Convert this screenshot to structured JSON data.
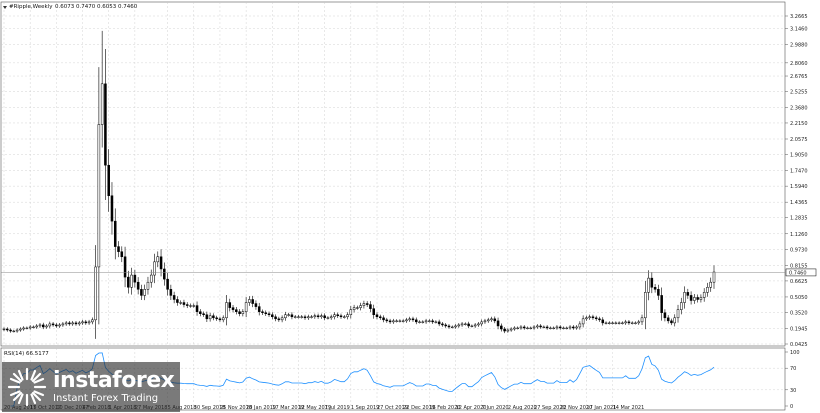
{
  "chart_data": [
    {
      "type": "candlestick",
      "header": {
        "symbol": "#Ripple,Weekly",
        "ohlc_text": "0.6073 0.7470 0.6053 0.7460",
        "last_price_label": "0.7460"
      },
      "y_ticks": [
        "3.2665",
        "3.1460",
        "2.9880",
        "2.8060",
        "2.6765",
        "2.5255",
        "2.3680",
        "2.2150",
        "2.0575",
        "1.9050",
        "1.7470",
        "1.5940",
        "1.4365",
        "1.2835",
        "1.1260",
        "0.9730",
        "0.8155",
        "0.6625",
        "0.5050",
        "0.3520",
        "0.1945",
        "0.0425"
      ],
      "ylim": [
        0.0425,
        3.2665
      ],
      "last_price": 0.746,
      "x_ticks": [
        "20 Aug 2017",
        "15 Oct 2017",
        "10 Dec 2017",
        "4 Feb 2018",
        "1 Apr 2018",
        "27 May 2018",
        "5 Aug 2018",
        "30 Sep 2018",
        "25 Nov 2018",
        "20 Jan 2019",
        "17 Mar 2019",
        "12 May 2019",
        "7 Jul 2019",
        "1 Sep 2019",
        "27 Oct 2019",
        "22 Dec 2019",
        "16 Feb 2020",
        "12 Apr 2020",
        "7 Jun 2020",
        "2 Aug 2020",
        "27 Sep 2020",
        "22 Nov 2020",
        "17 Jan 2021",
        "14 Mar 2021"
      ],
      "x_tick_weeks": [
        0,
        8,
        16,
        24,
        32,
        40,
        50,
        58,
        66,
        74,
        82,
        90,
        98,
        106,
        114,
        122,
        130,
        138,
        146,
        154,
        162,
        170,
        178,
        186
      ],
      "weekly_closes": [
        0.19,
        0.18,
        0.17,
        0.17,
        0.18,
        0.19,
        0.2,
        0.2,
        0.21,
        0.21,
        0.22,
        0.23,
        0.21,
        0.22,
        0.24,
        0.23,
        0.22,
        0.23,
        0.24,
        0.25,
        0.24,
        0.25,
        0.24,
        0.25,
        0.26,
        0.25,
        0.26,
        0.28,
        0.8,
        2.2,
        2.6,
        1.8,
        1.5,
        1.25,
        1.0,
        0.95,
        0.9,
        0.7,
        0.6,
        0.72,
        0.65,
        0.58,
        0.52,
        0.58,
        0.65,
        0.72,
        0.85,
        0.9,
        0.78,
        0.68,
        0.58,
        0.52,
        0.48,
        0.45,
        0.45,
        0.43,
        0.42,
        0.42,
        0.42,
        0.36,
        0.34,
        0.33,
        0.29,
        0.32,
        0.3,
        0.29,
        0.28,
        0.3,
        0.45,
        0.4,
        0.38,
        0.36,
        0.34,
        0.36,
        0.45,
        0.48,
        0.44,
        0.41,
        0.36,
        0.35,
        0.34,
        0.33,
        0.31,
        0.29,
        0.28,
        0.3,
        0.33,
        0.33,
        0.31,
        0.31,
        0.31,
        0.31,
        0.3,
        0.31,
        0.31,
        0.32,
        0.31,
        0.32,
        0.3,
        0.3,
        0.31,
        0.33,
        0.32,
        0.31,
        0.31,
        0.33,
        0.38,
        0.4,
        0.4,
        0.42,
        0.44,
        0.43,
        0.39,
        0.33,
        0.31,
        0.3,
        0.28,
        0.27,
        0.26,
        0.27,
        0.27,
        0.27,
        0.27,
        0.28,
        0.29,
        0.28,
        0.26,
        0.26,
        0.26,
        0.27,
        0.27,
        0.26,
        0.26,
        0.24,
        0.23,
        0.22,
        0.21,
        0.21,
        0.22,
        0.23,
        0.24,
        0.24,
        0.22,
        0.22,
        0.23,
        0.24,
        0.26,
        0.27,
        0.28,
        0.29,
        0.27,
        0.22,
        0.19,
        0.17,
        0.18,
        0.19,
        0.2,
        0.2,
        0.21,
        0.2,
        0.2,
        0.2,
        0.21,
        0.22,
        0.21,
        0.21,
        0.2,
        0.2,
        0.2,
        0.21,
        0.2,
        0.2,
        0.2,
        0.21,
        0.2,
        0.21,
        0.24,
        0.29,
        0.3,
        0.31,
        0.3,
        0.29,
        0.28,
        0.25,
        0.25,
        0.25,
        0.25,
        0.25,
        0.25,
        0.25,
        0.26,
        0.25,
        0.25,
        0.25,
        0.26,
        0.3,
        0.55,
        0.69,
        0.6,
        0.58,
        0.52,
        0.35,
        0.3,
        0.27,
        0.25,
        0.3,
        0.38,
        0.45,
        0.55,
        0.52,
        0.47,
        0.5,
        0.48,
        0.5,
        0.55,
        0.6,
        0.65,
        0.75
      ]
    },
    {
      "type": "line",
      "header": "RSI(14) 66.5177",
      "y_ticks": [
        "100",
        "70",
        "30",
        "0"
      ],
      "ylim": [
        0,
        100
      ],
      "levels": [
        70,
        30
      ],
      "line_color": "#1e90ff",
      "last_value": 66.5177
    }
  ],
  "logo": {
    "icon": "instaforex-burst-icon",
    "brand": "instaforex",
    "tagline": "Instant Forex Trading"
  }
}
